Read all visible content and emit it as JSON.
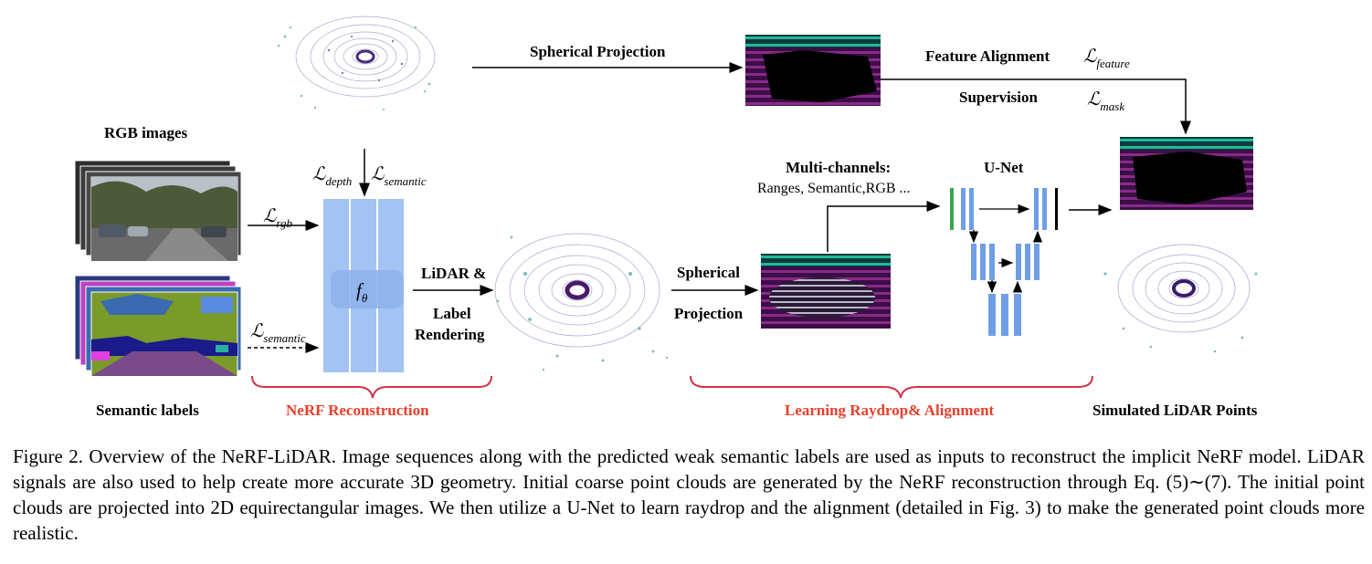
{
  "labels": {
    "rgb_images": "RGB images",
    "semantic_labels": "Semantic labels",
    "spherical_projection_top": "Spherical  Projection",
    "feature_alignment": "Feature Alignment",
    "supervision": "Supervision",
    "multi_channels_title": "Multi-channels:",
    "multi_channels_list": "Ranges, Semantic,RGB ...",
    "unet": "U-Net",
    "lidar_label_rendering": [
      "LiDAR &",
      "Label",
      "Rendering"
    ],
    "spherical_projection_mid": [
      "Spherical",
      "Projection"
    ],
    "nerf_reconstruction": "NeRF Reconstruction",
    "learning_raydrop": "Learning Raydrop& Alignment",
    "simulated_lidar": "Simulated LiDAR Points",
    "f_theta": "f",
    "f_theta_sub": "θ"
  },
  "losses": {
    "symbol": "ℒ",
    "depth": "depth",
    "semantic_top": "semantic",
    "rgb": "rgb",
    "semantic_left": "semantic",
    "feature": "feature",
    "mask": "mask"
  },
  "caption": "Figure 2. Overview of the NeRF-LiDAR. Image sequences along with the predicted weak semantic labels are used as inputs to reconstruct the implicit NeRF model. LiDAR signals are also used to help create more accurate 3D geometry. Initial coarse point clouds are generated by the NeRF reconstruction through Eq. (5)∼(7). The initial point clouds are projected into 2D equirectangular images. We then utilize a U-Net to learn raydrop and the alignment (detailed in Fig. 3) to make the generated point clouds more realistic.",
  "colors": {
    "nerf_block": "#a3c4f3",
    "nerf_block_dark": "#7ea9ea",
    "brace_red": "#d5304a",
    "unet_blue": "#6f9ee6",
    "unet_green": "#3aa64a",
    "range_teal": "#1fa08a",
    "range_purple": "#7a1f7a",
    "point_purple": "#4a2a7a",
    "point_teal": "#2a8a9a",
    "grass_green": "#7a9a2a",
    "road_purple": "#7a4a8a"
  }
}
